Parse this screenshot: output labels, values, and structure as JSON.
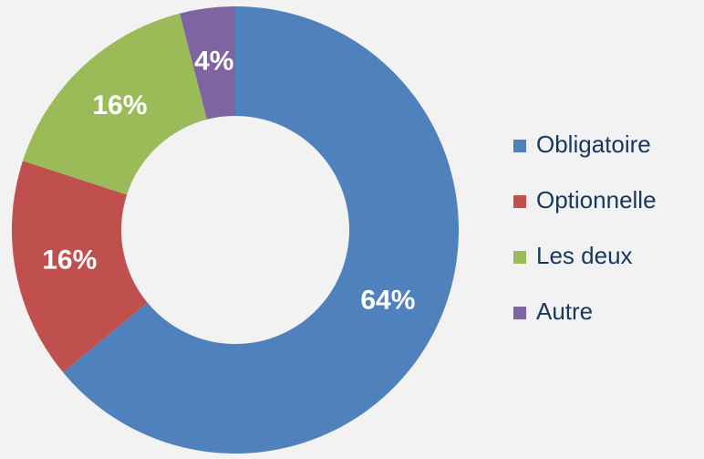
{
  "chart_data": {
    "type": "donut",
    "categories": [
      "Obligatoire",
      "Optionnelle",
      "Les deux",
      "Autre"
    ],
    "values": [
      64,
      16,
      16,
      4
    ],
    "value_labels": [
      "64%",
      "16%",
      "16%",
      "4%"
    ],
    "colors": [
      "#4f81bd",
      "#c0504d",
      "#9bbb59",
      "#8064a2"
    ],
    "legend": "right"
  }
}
